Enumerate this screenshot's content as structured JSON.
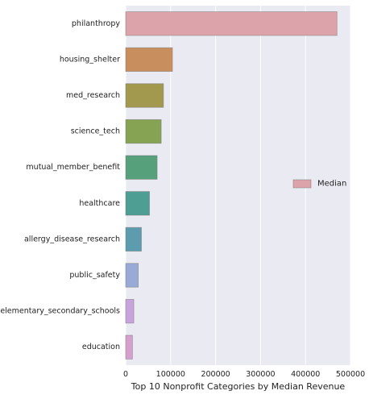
{
  "chart_data": {
    "type": "bar",
    "orientation": "horizontal",
    "categories": [
      "philanthropy",
      "housing_shelter",
      "med_research",
      "science_tech",
      "mutual_member_benefit",
      "healthcare",
      "allergy_disease_research",
      "public_safety",
      "elementary_secondary_schools",
      "education"
    ],
    "values": [
      470000,
      104000,
      84000,
      79000,
      70000,
      53000,
      35000,
      28000,
      18000,
      15000
    ],
    "colors": [
      "#dca3aa",
      "#c98e5e",
      "#a2994f",
      "#85a352",
      "#57a07c",
      "#4e9e93",
      "#5d9cae",
      "#9aaad6",
      "#c9a3dc",
      "#d79fcd"
    ],
    "xlabel": "Top 10 Nonprofit Categories by Median Revenue",
    "ylabel": "",
    "xlim": [
      0,
      500000
    ],
    "xticks": [
      0,
      100000,
      200000,
      300000,
      400000,
      500000
    ],
    "xtick_labels": [
      "0",
      "100000",
      "200000",
      "300000",
      "400000",
      "500000"
    ],
    "grid": true,
    "legend": {
      "placement": "right",
      "entries": [
        {
          "label": "Median",
          "color": "#dca3aa"
        }
      ]
    },
    "style": {
      "plot_background": "#eaeaf2",
      "grid_color": "#ffffff",
      "text_color": "#222222",
      "bar_edge": "#7a7a7a"
    }
  }
}
